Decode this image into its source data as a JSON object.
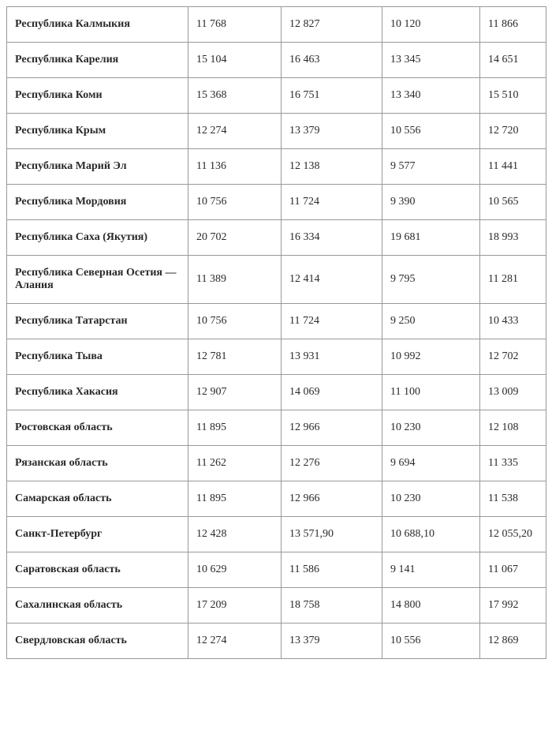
{
  "table": {
    "columns": {
      "region_width": 230,
      "v1_width": 118,
      "v2_width": 128,
      "v3_width": 124,
      "v4_width": 84,
      "alignment": "left",
      "border_color": "#999999",
      "text_color": "#2a2a2a",
      "region_font_weight": "bold",
      "value_font_weight": "normal",
      "font_family": "Georgia, serif",
      "font_size_pt": 10.5,
      "cell_padding_v": 14,
      "cell_padding_h": 10,
      "background_color": "#ffffff"
    },
    "rows": [
      {
        "region": "Республика Калмыкия",
        "v1": "11 768",
        "v2": "12 827",
        "v3": "10 120",
        "v4": "11 866"
      },
      {
        "region": "Республика Карелия",
        "v1": "15 104",
        "v2": "16 463",
        "v3": "13 345",
        "v4": "14 651"
      },
      {
        "region": "Республика Коми",
        "v1": "15 368",
        "v2": "16 751",
        "v3": "13 340",
        "v4": "15 510"
      },
      {
        "region": "Республика Крым",
        "v1": "12 274",
        "v2": "13 379",
        "v3": "10 556",
        "v4": "12 720"
      },
      {
        "region": "Республика Марий Эл",
        "v1": "11 136",
        "v2": "12 138",
        "v3": "9 577",
        "v4": "11 441"
      },
      {
        "region": "Республика Мордовия",
        "v1": "10 756",
        "v2": "11 724",
        "v3": "9 390",
        "v4": "10 565"
      },
      {
        "region": "Республика Саха (Якутия)",
        "v1": "20 702",
        "v2": "16 334",
        "v3": "19 681",
        "v4": "18 993"
      },
      {
        "region": "Республика Северная Осетия — Алания",
        "v1": "11 389",
        "v2": "12 414",
        "v3": "9 795",
        "v4": "11 281"
      },
      {
        "region": "Республика Татарстан",
        "v1": "10 756",
        "v2": "11 724",
        "v3": "9 250",
        "v4": "10 433"
      },
      {
        "region": "Республика Тыва",
        "v1": "12 781",
        "v2": "13 931",
        "v3": "10 992",
        "v4": "12 702"
      },
      {
        "region": "Республика Хакасия",
        "v1": "12 907",
        "v2": "14 069",
        "v3": "11 100",
        "v4": "13 009"
      },
      {
        "region": "Ростовская область",
        "v1": "11 895",
        "v2": "12 966",
        "v3": "10 230",
        "v4": "12 108"
      },
      {
        "region": "Рязанская область",
        "v1": "11 262",
        "v2": "12 276",
        "v3": "9 694",
        "v4": "11 335"
      },
      {
        "region": "Самарская область",
        "v1": "11 895",
        "v2": "12 966",
        "v3": "10 230",
        "v4": "11 538"
      },
      {
        "region": "Санкт-Петербург",
        "v1": "12 428",
        "v2": "13 571,90",
        "v3": "10 688,10",
        "v4": "12 055,20"
      },
      {
        "region": "Саратовская область",
        "v1": "10 629",
        "v2": "11 586",
        "v3": "9 141",
        "v4": "11 067"
      },
      {
        "region": "Сахалинская область",
        "v1": "17 209",
        "v2": "18 758",
        "v3": "14 800",
        "v4": "17 992"
      },
      {
        "region": "Свердловская область",
        "v1": "12 274",
        "v2": "13 379",
        "v3": "10 556",
        "v4": "12 869"
      }
    ]
  }
}
